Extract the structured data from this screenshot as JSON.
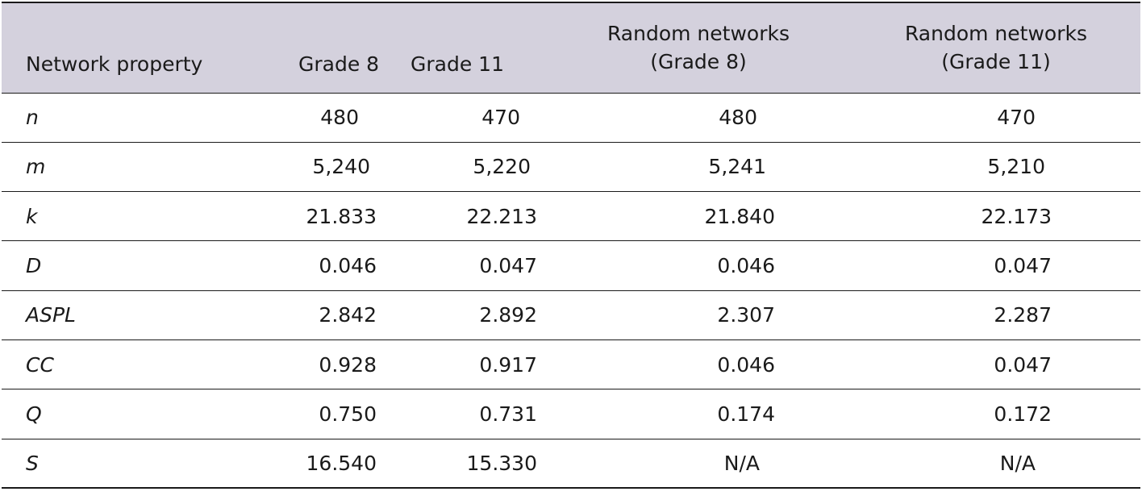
{
  "table": {
    "headers": [
      [
        "Network property"
      ],
      [
        "Grade 8"
      ],
      [
        "Grade 11"
      ],
      [
        "Random networks",
        "(Grade 8)"
      ],
      [
        "Random networks",
        "(Grade 11)"
      ]
    ],
    "rows": [
      {
        "property": "n",
        "values": [
          "480",
          "470",
          "480",
          "470"
        ]
      },
      {
        "property": "m",
        "values": [
          "5,240",
          "5,220",
          "5,241",
          "5,210"
        ]
      },
      {
        "property": "k",
        "values": [
          "21.833",
          "22.213",
          "21.840",
          "22.173"
        ]
      },
      {
        "property": "D",
        "values": [
          "0.046",
          "0.047",
          "0.046",
          "0.047"
        ]
      },
      {
        "property": "ASPL",
        "values": [
          "2.842",
          "2.892",
          "2.307",
          "2.287"
        ]
      },
      {
        "property": "CC",
        "values": [
          "0.928",
          "0.917",
          "0.046",
          "0.047"
        ]
      },
      {
        "property": "Q",
        "values": [
          "0.750",
          "0.731",
          "0.174",
          "0.172"
        ]
      },
      {
        "property": "S",
        "values": [
          "16.540",
          "15.330",
          "N/A",
          "N/A"
        ]
      }
    ]
  },
  "colors": {
    "header_background": "#d4d1dd",
    "rule": "#1a1a1a",
    "text": "#1a1a1a"
  }
}
